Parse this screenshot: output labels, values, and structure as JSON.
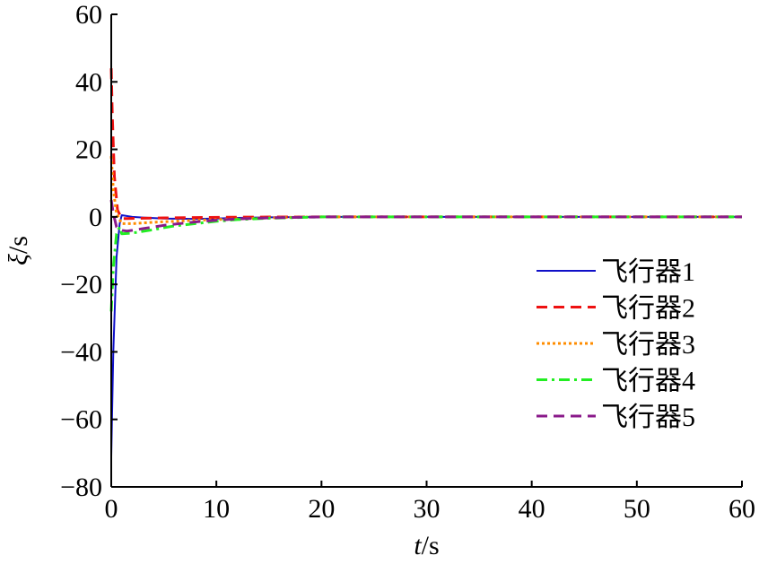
{
  "chart_data": {
    "type": "line",
    "xlabel": {
      "italic": "t",
      "rest": "/s"
    },
    "ylabel": {
      "italic": "ξ",
      "rest": "/s"
    },
    "xlim": [
      0,
      60
    ],
    "ylim": [
      -80,
      60
    ],
    "xticks": [
      0,
      10,
      20,
      30,
      40,
      50,
      60
    ],
    "yticks": [
      60,
      40,
      20,
      0,
      -20,
      -40,
      -60,
      -80
    ],
    "xtick_labels": [
      "0",
      "10",
      "20",
      "30",
      "40",
      "50",
      "60"
    ],
    "ytick_labels": [
      "60",
      "40",
      "20",
      "0",
      "−20",
      "−40",
      "−60",
      "−80"
    ],
    "grid": false,
    "legend_position": "right",
    "series": [
      {
        "name": "飞行器1",
        "color": "#1010c8",
        "dash": "solid",
        "x": [
          0,
          0.2,
          0.5,
          0.8,
          1.0,
          2,
          3,
          5,
          8,
          10,
          12,
          15,
          20,
          30,
          60
        ],
        "y": [
          -71,
          -40,
          -12,
          -2,
          0.5,
          0,
          -0.2,
          -0.5,
          -0.6,
          -0.5,
          -0.3,
          -0.15,
          0,
          0,
          0
        ]
      },
      {
        "name": "飞行器2",
        "color": "#ee1111",
        "dash": "dashed",
        "x": [
          0,
          0.1,
          0.3,
          0.6,
          1.0,
          1.5,
          3,
          5,
          8,
          12,
          16,
          20,
          30,
          60
        ],
        "y": [
          44,
          30,
          12,
          2,
          -0.5,
          -0.5,
          -0.4,
          -0.3,
          -0.2,
          -0.1,
          -0.05,
          0,
          0,
          0
        ]
      },
      {
        "name": "飞行器3",
        "color": "#ff8c00",
        "dash": "dotted",
        "x": [
          0,
          0.2,
          0.5,
          1.0,
          2,
          4,
          6,
          8,
          10,
          13,
          16,
          20,
          30,
          60
        ],
        "y": [
          18,
          8,
          1,
          -2,
          -2,
          -1.6,
          -1.3,
          -1.0,
          -0.8,
          -0.5,
          -0.2,
          0,
          0,
          0
        ]
      },
      {
        "name": "飞行器4",
        "color": "#22ee22",
        "dash": "dashdot",
        "x": [
          0,
          0.2,
          0.5,
          0.8,
          1.0,
          2,
          3,
          4,
          5,
          6,
          8,
          10,
          12,
          15,
          20,
          30,
          60
        ],
        "y": [
          -28,
          -15,
          -5,
          -3,
          -5,
          -4.8,
          -4.3,
          -3.8,
          -3.2,
          -2.7,
          -2,
          -1.3,
          -0.8,
          -0.4,
          0,
          0,
          0
        ]
      },
      {
        "name": "飞行器5",
        "color": "#8a1a8a",
        "dash": "dashed",
        "x": [
          0,
          0.2,
          0.5,
          1.0,
          1.5,
          2,
          3,
          5,
          8,
          10,
          12,
          15,
          20,
          30,
          60
        ],
        "y": [
          5,
          1,
          -3,
          -4,
          -4.2,
          -4.0,
          -3.5,
          -2.5,
          -1.5,
          -1.0,
          -0.6,
          -0.3,
          0,
          0,
          0
        ]
      }
    ]
  }
}
